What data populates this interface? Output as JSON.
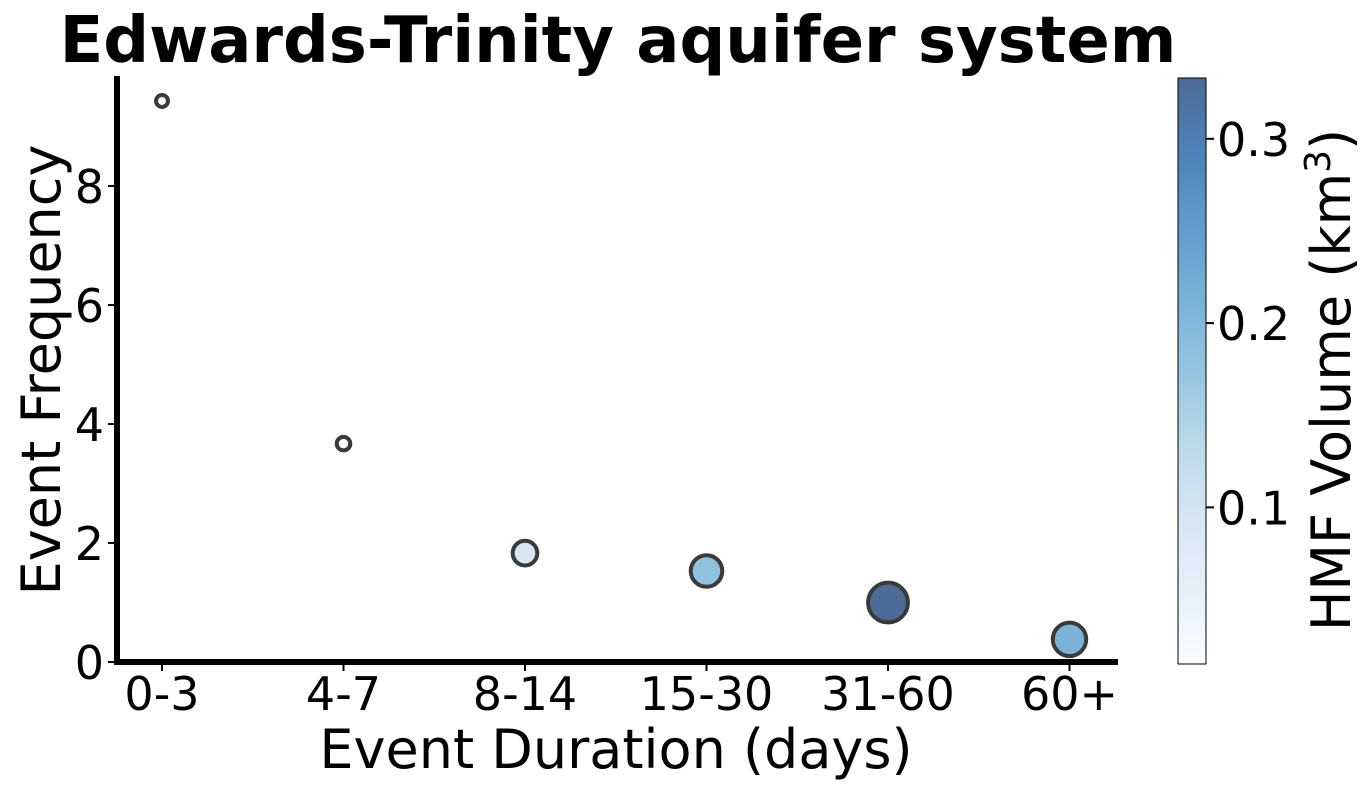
{
  "chart_data": {
    "type": "scatter",
    "title": "Edwards-Trinity aquifer system",
    "xlabel": "Event Duration (days)",
    "ylabel": "Event Frequency",
    "categories": [
      "0-3",
      "4-7",
      "8-14",
      "15-30",
      "31-60",
      "60+"
    ],
    "y_ticks": [
      0,
      2,
      4,
      6,
      8
    ],
    "y_tick_labels": [
      "0",
      "2",
      "4",
      "6",
      "8"
    ],
    "ylim": [
      0,
      9.85
    ],
    "grid": false,
    "points": [
      {
        "category": "0-3",
        "frequency": 9.43,
        "hmf_volume": 0.005
      },
      {
        "category": "4-7",
        "frequency": 3.67,
        "hmf_volume": 0.01
      },
      {
        "category": "8-14",
        "frequency": 1.83,
        "hmf_volume": 0.09
      },
      {
        "category": "15-30",
        "frequency": 1.53,
        "hmf_volume": 0.18
      },
      {
        "category": "31-60",
        "frequency": 1.0,
        "hmf_volume": 0.33
      },
      {
        "category": "60+",
        "frequency": 0.38,
        "hmf_volume": 0.21
      }
    ],
    "colorbar": {
      "label_main": "HMF Volume (km",
      "label_sup": "3",
      "label_close": ")",
      "range": [
        0.015,
        0.333
      ],
      "ticks": [
        0.1,
        0.2,
        0.3
      ],
      "tick_labels": [
        "0.1",
        "0.2",
        "0.3"
      ],
      "colormap": "Blues"
    },
    "marker_edge_color": "#3a3a3a"
  }
}
